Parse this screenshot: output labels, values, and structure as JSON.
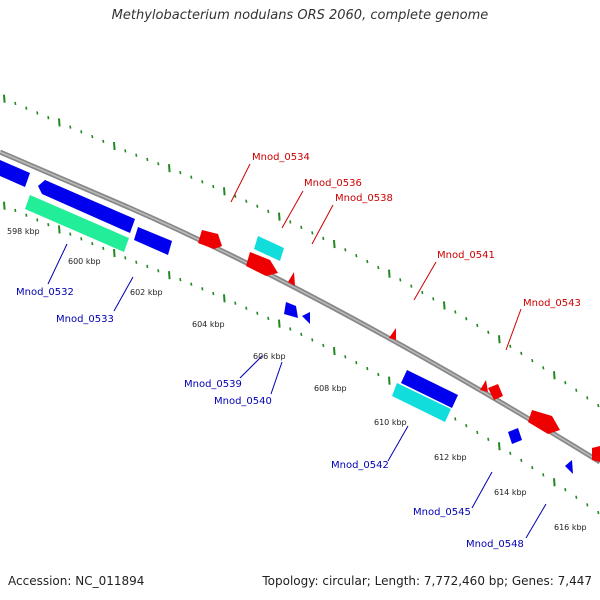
{
  "title": "Methylobacterium nodulans ORS 2060, complete genome",
  "footer": {
    "accession": "Accession: NC_011894",
    "summary": "Topology: circular; Length: 7,772,460 bp; Genes: 7,447"
  },
  "colors": {
    "backbone": "#999999",
    "forward_gene": "#ee0000",
    "reverse_gene": "#0000ee",
    "cyan_gene": "#11dddd",
    "green_gene": "#22ee99",
    "ticks": "#228822",
    "label_red": "#cc0000",
    "label_blue": "#0000b0"
  },
  "kbp_labels": [
    "598 kbp",
    "600 kbp",
    "602 kbp",
    "604 kbp",
    "606 kbp",
    "608 kbp",
    "610 kbp",
    "612 kbp",
    "614 kbp",
    "616 kbp"
  ],
  "gene_labels_top": [
    "Mnod_0534",
    "Mnod_0536",
    "Mnod_0538",
    "Mnod_0541",
    "Mnod_0543"
  ],
  "gene_labels_bottom": [
    "Mnod_0532",
    "Mnod_0533",
    "Mnod_0539",
    "Mnod_0540",
    "Mnod_0542",
    "Mnod_0545",
    "Mnod_0548"
  ]
}
